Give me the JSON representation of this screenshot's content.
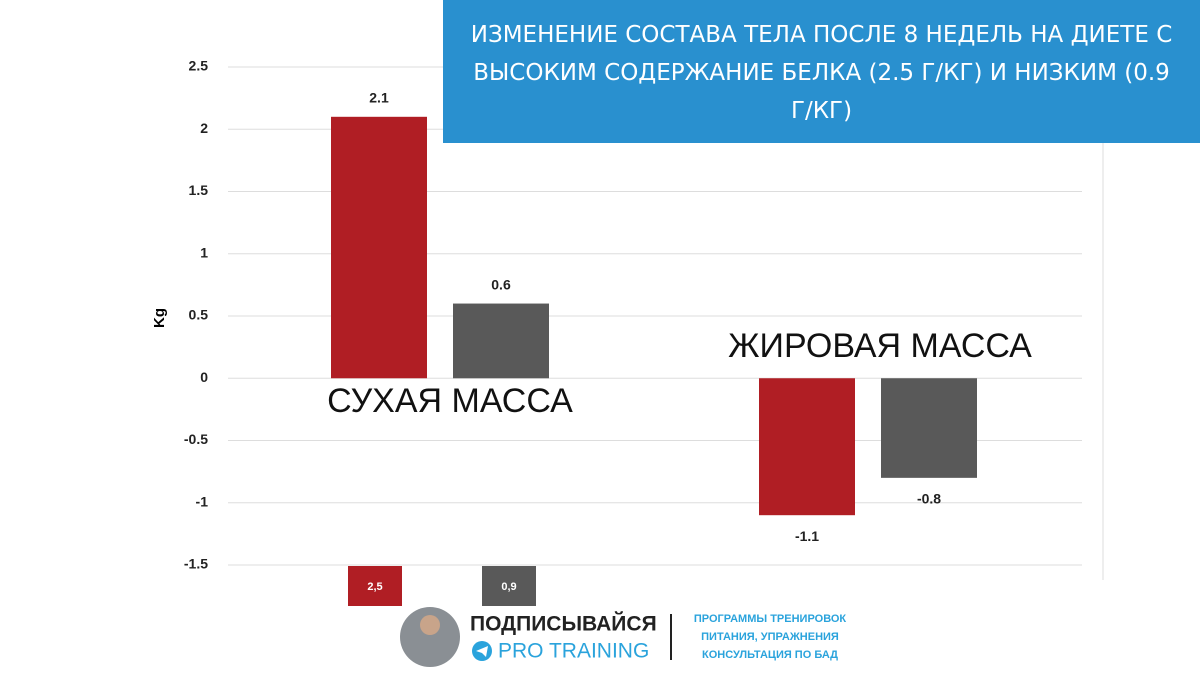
{
  "chart_data": {
    "type": "bar",
    "title": "ИЗМЕНЕНИЕ СОСТАВА ТЕЛА ПОСЛЕ 8 НЕДЕЛЬ НА ДИЕТЕ С ВЫСОКИМ СОДЕРЖАНИЕ БЕЛКА (2.5 Г/КГ) И НИЗКИМ (0.9 Г/КГ)",
    "y_label": "Kg",
    "categories": [
      "СУХАЯ МАССА",
      "ЖИРОВАЯ МАССА"
    ],
    "series": [
      {
        "name": "2,5",
        "color": "#b01e24",
        "values": [
          2.1,
          -1.1
        ]
      },
      {
        "name": "0,9",
        "color": "#595959",
        "values": [
          0.6,
          -0.8
        ]
      }
    ],
    "ylim": [
      -1.5,
      2.5
    ],
    "yticks": [
      2.5,
      2,
      1.5,
      1,
      0.5,
      0,
      -0.5,
      -1,
      -1.5
    ],
    "grid": true
  },
  "footer": {
    "subscribe": "ПОДПИСЫВАЙСЯ",
    "brand": "PRO TRAINING",
    "services": [
      "ПРОГРАММЫ ТРЕНИРОВОК",
      "ПИТАНИЯ, УПРАЖНЕНИЯ",
      "КОНСУЛЬТАЦИЯ ПО БАД"
    ]
  }
}
